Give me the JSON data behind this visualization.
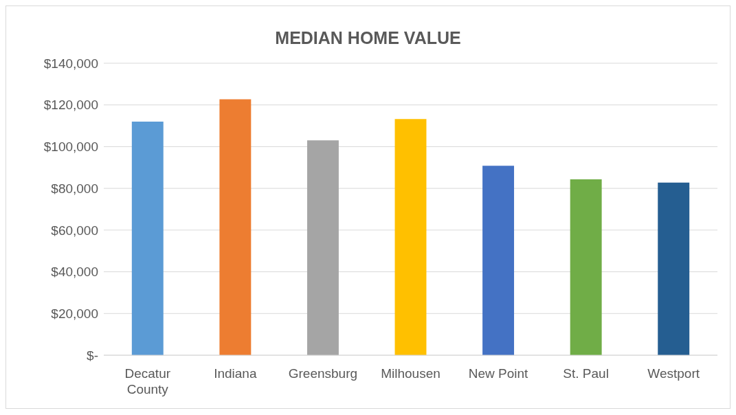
{
  "chart_data": {
    "type": "bar",
    "title": "MEDIAN HOME VALUE",
    "categories": [
      "Decatur County",
      "Indiana",
      "Greensburg",
      "Milhousen",
      "New Point",
      "St. Paul",
      "Westport"
    ],
    "values": [
      112000,
      122700,
      103000,
      113200,
      90800,
      84300,
      82800
    ],
    "colors": [
      "#5b9bd5",
      "#ed7d31",
      "#a5a5a5",
      "#ffc000",
      "#4472c4",
      "#70ad47",
      "#255e91"
    ],
    "ylim": [
      0,
      140000
    ],
    "yticks": [
      {
        "value": 0,
        "label": "$-"
      },
      {
        "value": 20000,
        "label": "$20,000"
      },
      {
        "value": 40000,
        "label": "$40,000"
      },
      {
        "value": 60000,
        "label": "$60,000"
      },
      {
        "value": 80000,
        "label": "$80,000"
      },
      {
        "value": 100000,
        "label": "$100,000"
      },
      {
        "value": 120000,
        "label": "$120,000"
      },
      {
        "value": 140000,
        "label": "$140,000"
      }
    ],
    "grid": "y"
  }
}
